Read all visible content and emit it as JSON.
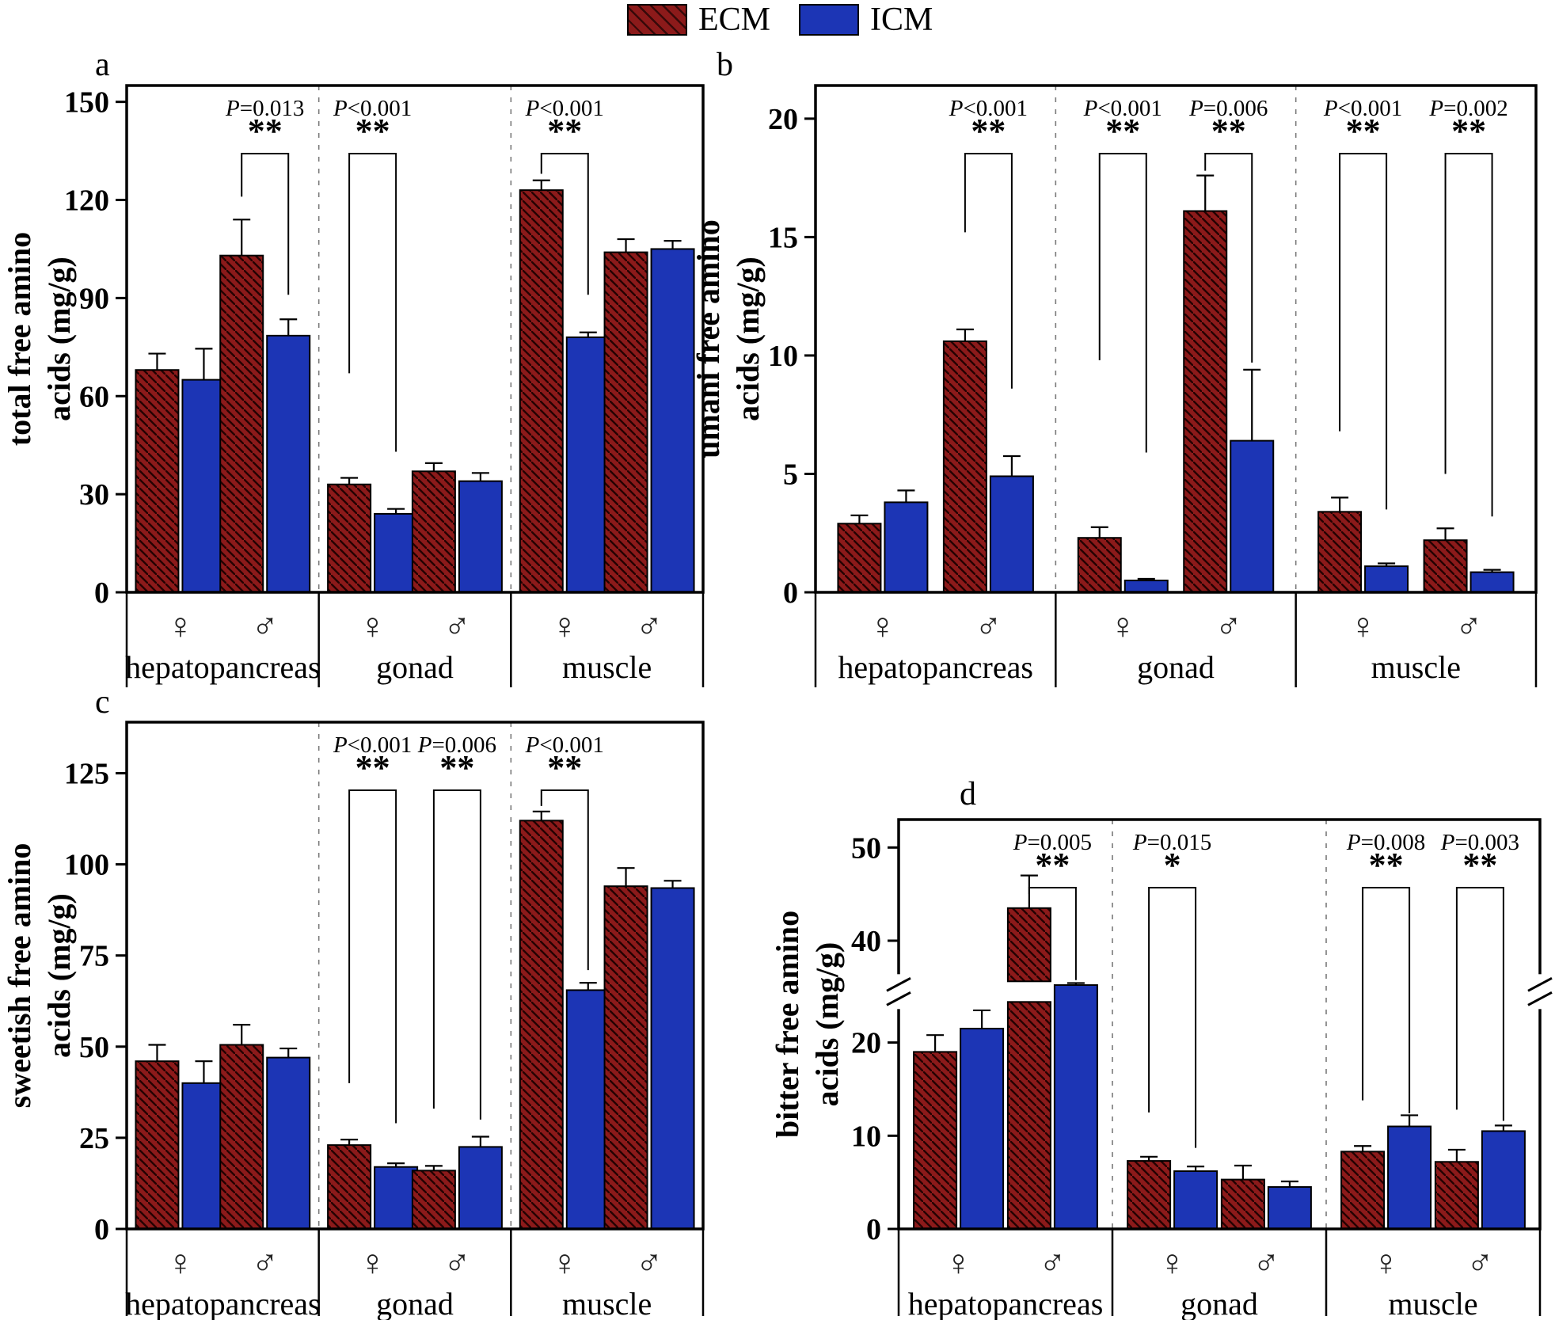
{
  "legend": {
    "items": [
      {
        "id": "ecm",
        "label": "ECM",
        "color": "#8c1a1a",
        "hatched": true
      },
      {
        "id": "icm",
        "label": "ICM",
        "color": "#1c35b5",
        "hatched": false
      }
    ]
  },
  "colors": {
    "ecm_fill": "#8c1a1a",
    "icm_fill": "#1c35b5",
    "hatch_line": "#240202",
    "axis": "#000000",
    "divider_dash": "#7a7a7a",
    "sex_symbol": "#222222",
    "background": "#ffffff"
  },
  "sexes": [
    {
      "id": "female",
      "symbol": "♀"
    },
    {
      "id": "male",
      "symbol": "♂"
    }
  ],
  "tissues": [
    "hepatopancreas",
    "gonad",
    "muscle"
  ],
  "chart_data": [
    {
      "type": "bar",
      "panel_label": "a",
      "ylabel_lines": [
        "total free amino",
        "acids (mg/g)"
      ],
      "yticks": [
        0,
        30,
        60,
        90,
        120,
        150
      ],
      "scale_max": 155,
      "categories": [
        "hepatopancreas-female",
        "hepatopancreas-male",
        "gonad-female",
        "gonad-male",
        "muscle-female",
        "muscle-male"
      ],
      "series": [
        {
          "name": "ECM",
          "values": [
            68,
            103,
            33,
            37,
            123,
            104
          ],
          "errors": [
            5,
            11,
            2,
            2.5,
            3,
            4
          ]
        },
        {
          "name": "ICM",
          "values": [
            65,
            78.5,
            24,
            34,
            78,
            105
          ],
          "errors": [
            9.5,
            5,
            1.5,
            2.5,
            1.5,
            2.5
          ]
        }
      ],
      "annotations": [
        {
          "slot": 1,
          "p": "P=0.013",
          "stars": "**",
          "arm_left_end": 121,
          "arm_right_end": 91
        },
        {
          "slot": 2,
          "p": "P<0.001",
          "stars": "**",
          "arm_left_end": 67,
          "arm_right_end": 43
        },
        {
          "slot": 4,
          "p": "P<0.001",
          "stars": "**",
          "arm_left_end": 128,
          "arm_right_end": 91
        }
      ]
    },
    {
      "type": "bar",
      "panel_label": "b",
      "ylabel_lines": [
        "umani free amino",
        "acids (mg/g)"
      ],
      "yticks": [
        0,
        5,
        10,
        15,
        20
      ],
      "scale_max": 21.4,
      "categories": [
        "hepatopancreas-female",
        "hepatopancreas-male",
        "gonad-female",
        "gonad-male",
        "muscle-female",
        "muscle-male"
      ],
      "series": [
        {
          "name": "ECM",
          "values": [
            2.9,
            10.6,
            2.3,
            16.1,
            3.4,
            2.2
          ],
          "errors": [
            0.35,
            0.5,
            0.45,
            1.5,
            0.6,
            0.5
          ]
        },
        {
          "name": "ICM",
          "values": [
            3.8,
            4.9,
            0.5,
            6.4,
            1.1,
            0.85
          ],
          "errors": [
            0.5,
            0.85,
            0.07,
            3.0,
            0.12,
            0.1
          ]
        }
      ],
      "annotations": [
        {
          "slot": 1,
          "p": "P<0.001",
          "stars": "**",
          "arm_left_end": 15.2,
          "arm_right_end": 8.6
        },
        {
          "slot": 2,
          "p": "P<0.001",
          "stars": "**",
          "arm_left_end": 9.8,
          "arm_right_end": 5.9
        },
        {
          "slot": 3,
          "p": "P=0.006",
          "stars": "**",
          "arm_left_end": 17.8,
          "arm_right_end": 9.7
        },
        {
          "slot": 4,
          "p": "P<0.001",
          "stars": "**",
          "arm_left_end": 6.8,
          "arm_right_end": 3.5
        },
        {
          "slot": 5,
          "p": "P=0.002",
          "stars": "**",
          "arm_left_end": 5.0,
          "arm_right_end": 3.2
        }
      ]
    },
    {
      "type": "bar",
      "panel_label": "c",
      "ylabel_lines": [
        "sweetish free amino",
        "acids (mg/g)"
      ],
      "yticks": [
        0,
        25,
        50,
        75,
        100,
        125
      ],
      "scale_max": 139,
      "categories": [
        "hepatopancreas-female",
        "hepatopancreas-male",
        "gonad-female",
        "gonad-male",
        "muscle-female",
        "muscle-male"
      ],
      "series": [
        {
          "name": "ECM",
          "values": [
            46,
            50.5,
            23,
            16,
            112,
            94
          ],
          "errors": [
            4.5,
            5.5,
            1.5,
            1.3,
            2.5,
            5
          ]
        },
        {
          "name": "ICM",
          "values": [
            40,
            47,
            17,
            22.5,
            65.5,
            93.5
          ],
          "errors": [
            6,
            2.5,
            1,
            2.8,
            2,
            2
          ]
        }
      ],
      "annotations": [
        {
          "slot": 2,
          "p": "P<0.001",
          "stars": "**",
          "arm_left_end": 40,
          "arm_right_end": 29
        },
        {
          "slot": 3,
          "p": "P=0.006",
          "stars": "**",
          "arm_left_end": 33,
          "arm_right_end": 30
        },
        {
          "slot": 4,
          "p": "P<0.001",
          "stars": "**",
          "arm_left_end": 116,
          "arm_right_end": 71
        }
      ]
    },
    {
      "type": "bar",
      "panel_label": "d",
      "ylabel_lines": [
        "bitter free amino",
        "acids (mg/g)"
      ],
      "axis_break": {
        "gap_start": 23,
        "gap_end": 37,
        "lower_ticks": [
          0,
          10,
          20
        ],
        "upper_ticks": [
          40,
          50
        ],
        "ymax": 53
      },
      "categories": [
        "hepatopancreas-female",
        "hepatopancreas-male",
        "gonad-female",
        "gonad-male",
        "muscle-female",
        "muscle-male"
      ],
      "series": [
        {
          "name": "ECM",
          "values": [
            19,
            43.5,
            7.3,
            5.3,
            8.3,
            7.2
          ],
          "errors": [
            1.8,
            3.5,
            0.45,
            1.5,
            0.6,
            1.3
          ]
        },
        {
          "name": "ICM",
          "values": [
            21.5,
            32,
            6.2,
            4.5,
            11,
            10.5
          ],
          "errors": [
            2.8,
            0.6,
            0.5,
            0.6,
            1.2,
            0.6
          ]
        }
      ],
      "annotations": [
        {
          "slot": 1,
          "p": "P=0.005",
          "stars": "**",
          "arm_left_end": 45,
          "arm_right_end": 33.5
        },
        {
          "slot": 2,
          "p": "P=0.015",
          "stars": "*",
          "arm_left_end": 12.5,
          "arm_right_end": 8.7
        },
        {
          "slot": 4,
          "p": "P=0.008",
          "stars": "**",
          "arm_left_end": 13.8,
          "arm_right_end": 12.4
        },
        {
          "slot": 5,
          "p": "P=0.003",
          "stars": "**",
          "arm_left_end": 12.8,
          "arm_right_end": 11.6
        }
      ]
    }
  ]
}
